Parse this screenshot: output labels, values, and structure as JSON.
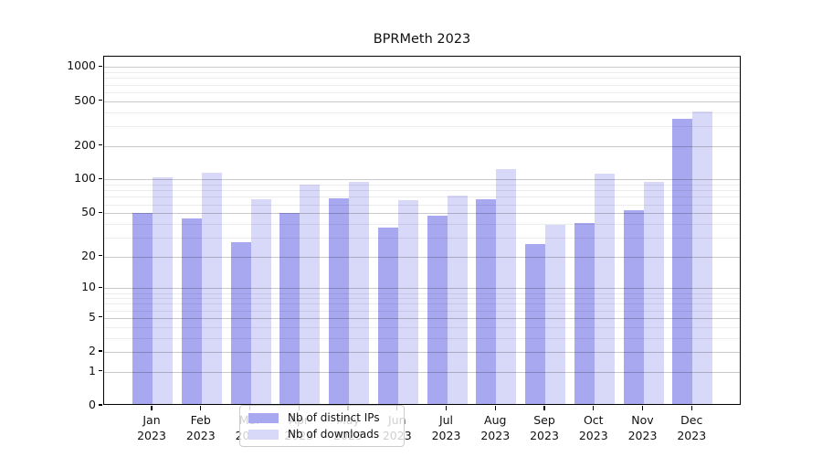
{
  "chart_data": {
    "type": "bar",
    "title": "BPRMeth 2023",
    "categories": [
      "Jan 2023",
      "Feb 2023",
      "Mar 2023",
      "Apr 2023",
      "May 2023",
      "Jun 2023",
      "Jul 2023",
      "Aug 2023",
      "Sep 2023",
      "Oct 2023",
      "Nov 2023",
      "Dec 2023"
    ],
    "series": [
      {
        "name": "Nb of distinct IPs",
        "color": "#a8a8f0",
        "values": [
          50,
          45,
          27,
          50,
          68,
          37,
          47,
          66,
          26,
          41,
          53,
          345
        ]
      },
      {
        "name": "Nb of downloads",
        "color": "#d8d8f8",
        "values": [
          105,
          115,
          67,
          90,
          96,
          65,
          72,
          124,
          39,
          113,
          96,
          405
        ]
      }
    ],
    "y_axis": {
      "scale": "log1p",
      "tick_labels": [
        "1000",
        "500",
        "200",
        "100",
        "50",
        "20",
        "10",
        "5",
        "2",
        "1",
        "0"
      ],
      "tick_values": [
        1000,
        500,
        200,
        100,
        50,
        20,
        10,
        5,
        2,
        1,
        0
      ],
      "ylim": [
        0,
        1240
      ]
    },
    "x_axis": {
      "label_lines": 2
    },
    "legend": {
      "position": "lower center"
    },
    "grid": true,
    "colors": {
      "bar_distinct_ips": "#a8a8f0",
      "bar_downloads": "#d8d8f8",
      "axis": "#000000",
      "grid_major": "#c9c9c9",
      "grid_minor": "#ececec",
      "text": "#111111",
      "legend_border": "#cccccc"
    }
  }
}
